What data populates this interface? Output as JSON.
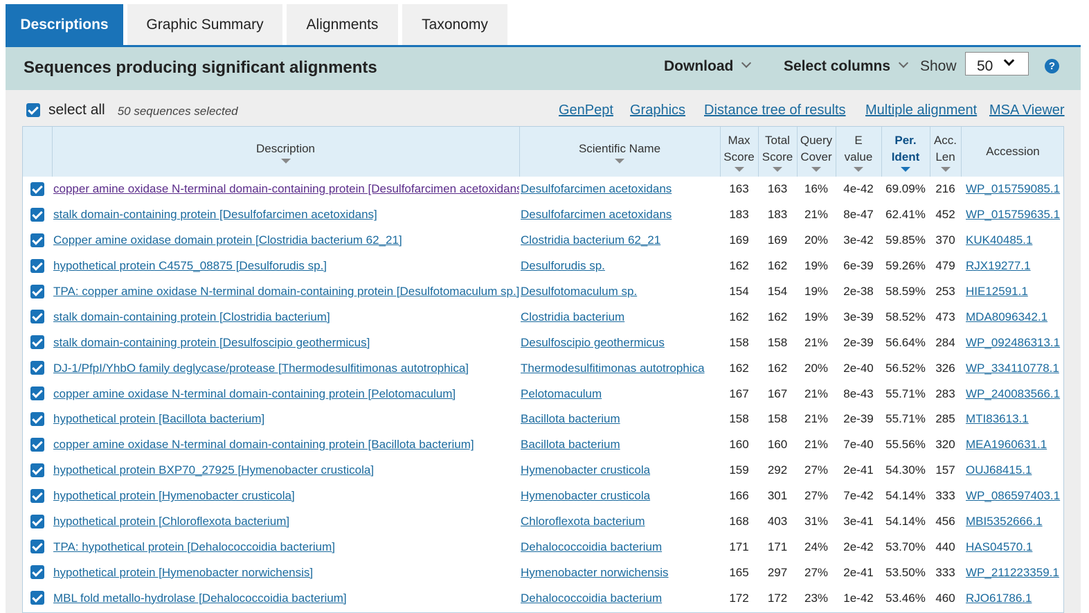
{
  "tabs": [
    {
      "label": "Descriptions",
      "active": true
    },
    {
      "label": "Graphic Summary",
      "active": false
    },
    {
      "label": "Alignments",
      "active": false
    },
    {
      "label": "Taxonomy",
      "active": false
    }
  ],
  "header": {
    "title": "Sequences producing significant alignments",
    "download_label": "Download",
    "select_columns_label": "Select columns",
    "show_label": "Show",
    "show_value": "50",
    "help_glyph": "?"
  },
  "selection": {
    "select_all_label": "select all",
    "selected_count": "50 sequences selected"
  },
  "links": {
    "genpept": "GenPept",
    "graphics": "Graphics",
    "distance_tree": "Distance tree of results",
    "multiple_alignment": "Multiple alignment",
    "msa_viewer": "MSA Viewer"
  },
  "columns": {
    "description": "Description",
    "scientific_name": "Scientific Name",
    "max_score_1": "Max",
    "max_score_2": "Score",
    "total_score_1": "Total",
    "total_score_2": "Score",
    "query_cover_1": "Query",
    "query_cover_2": "Cover",
    "e_value_1": "E",
    "e_value_2": "value",
    "per_ident_1": "Per.",
    "per_ident_2": "Ident",
    "acc_len_1": "Acc.",
    "acc_len_2": "Len",
    "accession": "Accession"
  },
  "rows": [
    {
      "description": "copper amine oxidase N-terminal domain-containing protein [Desulfofarcimen acetoxidans]",
      "scientific_name": "Desulfofarcimen acetoxidans",
      "max_score": "163",
      "total_score": "163",
      "query_cover": "16%",
      "e_value": "4e-42",
      "per_ident": "69.09%",
      "acc_len": "216",
      "accession": "WP_015759085.1"
    },
    {
      "description": "stalk domain-containing protein [Desulfofarcimen acetoxidans]",
      "scientific_name": "Desulfofarcimen acetoxidans",
      "max_score": "183",
      "total_score": "183",
      "query_cover": "21%",
      "e_value": "8e-47",
      "per_ident": "62.41%",
      "acc_len": "452",
      "accession": "WP_015759635.1"
    },
    {
      "description": "Copper amine oxidase domain protein [Clostridia bacterium 62_21]",
      "scientific_name": "Clostridia bacterium 62_21",
      "max_score": "169",
      "total_score": "169",
      "query_cover": "20%",
      "e_value": "3e-42",
      "per_ident": "59.85%",
      "acc_len": "370",
      "accession": "KUK40485.1"
    },
    {
      "description": "hypothetical protein C4575_08875 [Desulforudis sp.]",
      "scientific_name": "Desulforudis sp.",
      "max_score": "162",
      "total_score": "162",
      "query_cover": "19%",
      "e_value": "6e-39",
      "per_ident": "59.26%",
      "acc_len": "479",
      "accession": "RJX19277.1"
    },
    {
      "description": "TPA: copper amine oxidase N-terminal domain-containing protein [Desulfotomaculum sp.]",
      "scientific_name": "Desulfotomaculum sp.",
      "max_score": "154",
      "total_score": "154",
      "query_cover": "19%",
      "e_value": "2e-38",
      "per_ident": "58.59%",
      "acc_len": "253",
      "accession": "HIE12591.1"
    },
    {
      "description": "stalk domain-containing protein [Clostridia bacterium]",
      "scientific_name": "Clostridia bacterium",
      "max_score": "162",
      "total_score": "162",
      "query_cover": "19%",
      "e_value": "3e-39",
      "per_ident": "58.52%",
      "acc_len": "473",
      "accession": "MDA8096342.1"
    },
    {
      "description": "stalk domain-containing protein [Desulfoscipio geothermicus]",
      "scientific_name": "Desulfoscipio geothermicus",
      "max_score": "158",
      "total_score": "158",
      "query_cover": "21%",
      "e_value": "2e-39",
      "per_ident": "56.64%",
      "acc_len": "284",
      "accession": "WP_092486313.1"
    },
    {
      "description": "DJ-1/PfpI/YhbO family deglycase/protease [Thermodesulfitimonas autotrophica]",
      "scientific_name": "Thermodesulfitimonas autotrophica",
      "max_score": "162",
      "total_score": "162",
      "query_cover": "20%",
      "e_value": "2e-40",
      "per_ident": "56.52%",
      "acc_len": "326",
      "accession": "WP_334110778.1"
    },
    {
      "description": "copper amine oxidase N-terminal domain-containing protein [Pelotomaculum]",
      "scientific_name": "Pelotomaculum",
      "max_score": "167",
      "total_score": "167",
      "query_cover": "21%",
      "e_value": "8e-43",
      "per_ident": "55.71%",
      "acc_len": "283",
      "accession": "WP_240083566.1"
    },
    {
      "description": "hypothetical protein [Bacillota bacterium]",
      "scientific_name": "Bacillota bacterium",
      "max_score": "158",
      "total_score": "158",
      "query_cover": "21%",
      "e_value": "2e-39",
      "per_ident": "55.71%",
      "acc_len": "285",
      "accession": "MTI83613.1"
    },
    {
      "description": "copper amine oxidase N-terminal domain-containing protein [Bacillota bacterium]",
      "scientific_name": "Bacillota bacterium",
      "max_score": "160",
      "total_score": "160",
      "query_cover": "21%",
      "e_value": "7e-40",
      "per_ident": "55.56%",
      "acc_len": "320",
      "accession": "MEA1960631.1"
    },
    {
      "description": "hypothetical protein BXP70_27925 [Hymenobacter crusticola]",
      "scientific_name": "Hymenobacter crusticola",
      "max_score": "159",
      "total_score": "292",
      "query_cover": "27%",
      "e_value": "2e-41",
      "per_ident": "54.30%",
      "acc_len": "157",
      "accession": "OUJ68415.1"
    },
    {
      "description": "hypothetical protein [Hymenobacter crusticola]",
      "scientific_name": "Hymenobacter crusticola",
      "max_score": "166",
      "total_score": "301",
      "query_cover": "27%",
      "e_value": "7e-42",
      "per_ident": "54.14%",
      "acc_len": "333",
      "accession": "WP_086597403.1"
    },
    {
      "description": "hypothetical protein [Chloroflexota bacterium]",
      "scientific_name": "Chloroflexota bacterium",
      "max_score": "168",
      "total_score": "403",
      "query_cover": "31%",
      "e_value": "3e-41",
      "per_ident": "54.14%",
      "acc_len": "456",
      "accession": "MBI5352666.1"
    },
    {
      "description": "TPA: hypothetical protein [Dehalococcoidia bacterium]",
      "scientific_name": "Dehalococcoidia bacterium",
      "max_score": "171",
      "total_score": "171",
      "query_cover": "24%",
      "e_value": "2e-42",
      "per_ident": "53.70%",
      "acc_len": "440",
      "accession": "HAS04570.1"
    },
    {
      "description": "hypothetical protein [Hymenobacter norwichensis]",
      "scientific_name": "Hymenobacter norwichensis",
      "max_score": "165",
      "total_score": "297",
      "query_cover": "27%",
      "e_value": "2e-41",
      "per_ident": "53.50%",
      "acc_len": "333",
      "accession": "WP_211223359.1"
    },
    {
      "description": "MBL fold metallo-hydrolase [Dehalococcoidia bacterium]",
      "scientific_name": "Dehalococcoidia bacterium",
      "max_score": "172",
      "total_score": "172",
      "query_cover": "23%",
      "e_value": "1e-42",
      "per_ident": "53.46%",
      "acc_len": "460",
      "accession": "RJO61786.1"
    }
  ]
}
